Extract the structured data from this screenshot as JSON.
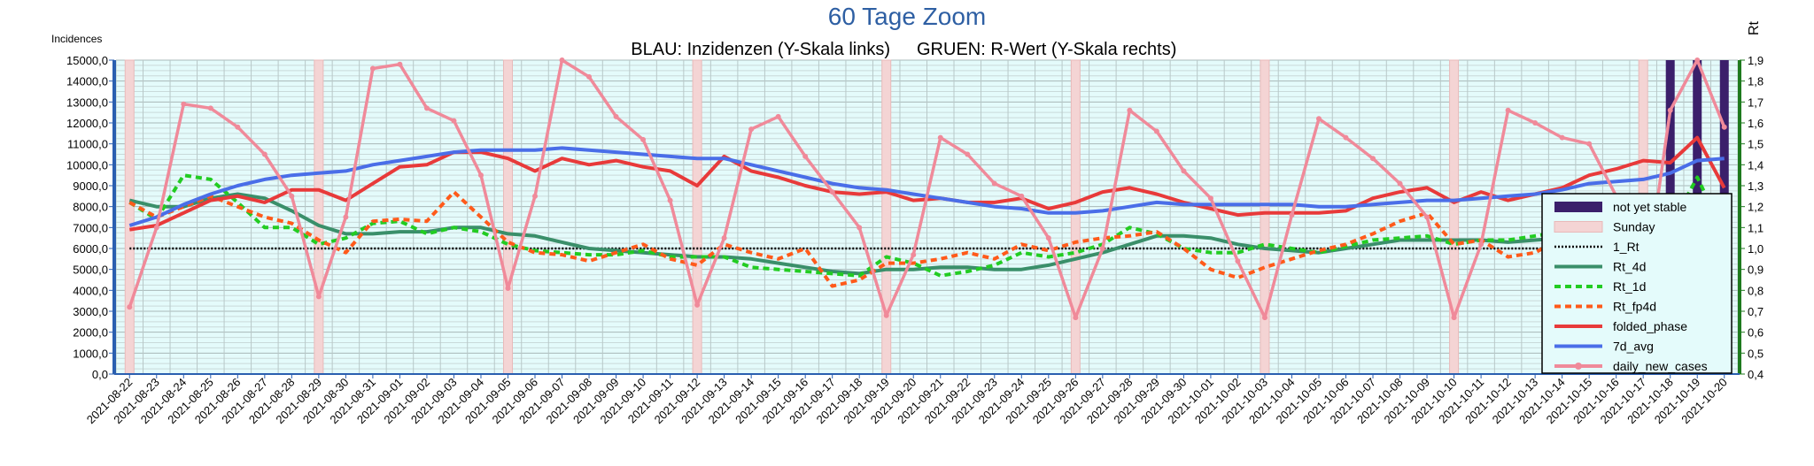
{
  "chart_data": {
    "type": "line",
    "title": "60 Tage Zoom",
    "subtitle_left": "BLAU: Inzidenzen (Y-Skala links)",
    "subtitle_right": "GRUEN: R-Wert (Y-Skala rechts)",
    "ylabel_left": "Incidences",
    "ylabel_right": "Rt",
    "ylim_left": [
      0,
      15000
    ],
    "ylim_right": [
      0.4,
      1.9
    ],
    "yticks_left": [
      "0,0",
      "1000,0",
      "2000,0",
      "3000,0",
      "4000,0",
      "5000,0",
      "6000,0",
      "7000,0",
      "8000,0",
      "9000,0",
      "10000,0",
      "11000,0",
      "12000,0",
      "13000,0",
      "14000,0",
      "15000,0"
    ],
    "yticks_right": [
      "0,4",
      "0,5",
      "0,6",
      "0,7",
      "0,8",
      "0,9",
      "1,0",
      "1,1",
      "1,2",
      "1,3",
      "1,4",
      "1,5",
      "1,6",
      "1,7",
      "1,8",
      "1,9"
    ],
    "categories": [
      "2021-08-22",
      "2021-08-23",
      "2021-08-24",
      "2021-08-25",
      "2021-08-26",
      "2021-08-27",
      "2021-08-28",
      "2021-08-29",
      "2021-08-30",
      "2021-08-31",
      "2021-09-01",
      "2021-09-02",
      "2021-09-03",
      "2021-09-04",
      "2021-09-05",
      "2021-09-06",
      "2021-09-07",
      "2021-09-08",
      "2021-09-09",
      "2021-09-10",
      "2021-09-11",
      "2021-09-12",
      "2021-09-13",
      "2021-09-14",
      "2021-09-15",
      "2021-09-16",
      "2021-09-17",
      "2021-09-18",
      "2021-09-19",
      "2021-09-20",
      "2021-09-21",
      "2021-09-22",
      "2021-09-23",
      "2021-09-24",
      "2021-09-25",
      "2021-09-26",
      "2021-09-27",
      "2021-09-28",
      "2021-09-29",
      "2021-09-30",
      "2021-10-01",
      "2021-10-02",
      "2021-10-03",
      "2021-10-04",
      "2021-10-05",
      "2021-10-06",
      "2021-10-07",
      "2021-10-08",
      "2021-10-09",
      "2021-10-10",
      "2021-10-11",
      "2021-10-12",
      "2021-10-13",
      "2021-10-14",
      "2021-10-15",
      "2021-10-16",
      "2021-10-17",
      "2021-10-18",
      "2021-10-19",
      "2021-10-20"
    ],
    "sunday_dates": [
      "2021-08-22",
      "2021-08-29",
      "2021-09-05",
      "2021-09-12",
      "2021-09-19",
      "2021-09-26",
      "2021-10-03",
      "2021-10-10",
      "2021-10-17"
    ],
    "not_yet_stable_dates": [
      "2021-10-18",
      "2021-10-19",
      "2021-10-20"
    ],
    "legend_position": "right",
    "grid": true,
    "series": [
      {
        "name": "not yet stable",
        "axis": "left",
        "style": "bar",
        "color": "#3b1f6b"
      },
      {
        "name": "Sunday",
        "axis": "left",
        "style": "bar",
        "color": "#f4d4d4"
      },
      {
        "name": "1_Rt",
        "axis": "right",
        "style": "dotted",
        "color": "#000000",
        "values": [
          1.0,
          1.0,
          1.0,
          1.0,
          1.0,
          1.0,
          1.0,
          1.0,
          1.0,
          1.0,
          1.0,
          1.0,
          1.0,
          1.0,
          1.0,
          1.0,
          1.0,
          1.0,
          1.0,
          1.0,
          1.0,
          1.0,
          1.0,
          1.0,
          1.0,
          1.0,
          1.0,
          1.0,
          1.0,
          1.0,
          1.0,
          1.0,
          1.0,
          1.0,
          1.0,
          1.0,
          1.0,
          1.0,
          1.0,
          1.0,
          1.0,
          1.0,
          1.0,
          1.0,
          1.0,
          1.0,
          1.0,
          1.0,
          1.0,
          1.0,
          1.0,
          1.0,
          1.0,
          1.0,
          1.0,
          1.0,
          1.0,
          1.0,
          1.0,
          1.0
        ]
      },
      {
        "name": "Rt_4d",
        "axis": "right",
        "style": "solid",
        "color": "#3a8f6a",
        "values": [
          1.23,
          1.2,
          1.2,
          1.24,
          1.26,
          1.24,
          1.18,
          1.11,
          1.07,
          1.07,
          1.08,
          1.08,
          1.1,
          1.1,
          1.07,
          1.06,
          1.03,
          1.0,
          0.99,
          0.98,
          0.97,
          0.96,
          0.96,
          0.95,
          0.93,
          0.91,
          0.89,
          0.88,
          0.9,
          0.9,
          0.91,
          0.91,
          0.9,
          0.9,
          0.92,
          0.95,
          0.98,
          1.02,
          1.06,
          1.06,
          1.05,
          1.02,
          1.0,
          0.99,
          0.98,
          1.0,
          1.02,
          1.04,
          1.04,
          1.04,
          1.04,
          1.03,
          1.04,
          1.05,
          1.06,
          1.07,
          1.08,
          1.12,
          1.14,
          1.1
        ]
      },
      {
        "name": "Rt_1d",
        "axis": "right",
        "style": "dashed",
        "color": "#22cc22",
        "values": [
          1.22,
          1.14,
          1.35,
          1.33,
          1.22,
          1.1,
          1.1,
          1.02,
          1.05,
          1.12,
          1.13,
          1.07,
          1.1,
          1.08,
          1.02,
          0.99,
          0.98,
          0.97,
          0.97,
          0.99,
          0.96,
          0.96,
          0.96,
          0.91,
          0.9,
          0.89,
          0.88,
          0.87,
          0.96,
          0.93,
          0.87,
          0.89,
          0.92,
          0.98,
          0.96,
          0.98,
          1.02,
          1.1,
          1.07,
          1.0,
          0.98,
          0.98,
          1.02,
          1.0,
          0.98,
          1.01,
          1.04,
          1.05,
          1.06,
          1.02,
          1.04,
          1.04,
          1.06,
          1.08,
          1.12,
          1.06,
          1.05,
          1.1,
          1.34,
          1.07
        ]
      },
      {
        "name": "Rt_fp4d",
        "axis": "right",
        "style": "dashed",
        "color": "#ff5a1a",
        "values": [
          1.22,
          1.15,
          1.2,
          1.25,
          1.2,
          1.15,
          1.12,
          1.04,
          0.98,
          1.13,
          1.14,
          1.13,
          1.27,
          1.15,
          1.03,
          0.98,
          0.97,
          0.94,
          0.98,
          1.02,
          0.95,
          0.92,
          1.02,
          0.98,
          0.95,
          1.0,
          0.82,
          0.85,
          0.93,
          0.93,
          0.95,
          0.98,
          0.95,
          1.02,
          0.99,
          1.03,
          1.05,
          1.06,
          1.08,
          1.0,
          0.9,
          0.86,
          0.91,
          0.95,
          0.99,
          1.02,
          1.07,
          1.13,
          1.17,
          1.02,
          1.04,
          0.96,
          0.98,
          1.05,
          1.08,
          1.12,
          1.19,
          1.16,
          1.12,
          0.92
        ]
      },
      {
        "name": "folded_phase",
        "axis": "left",
        "style": "solid",
        "color": "#e83a3a",
        "values": [
          6900,
          7100,
          7700,
          8300,
          8500,
          8200,
          8800,
          8800,
          8300,
          9100,
          9900,
          10000,
          10600,
          10600,
          10300,
          9700,
          10300,
          10000,
          10200,
          9900,
          9700,
          9000,
          10400,
          9700,
          9400,
          9000,
          8700,
          8600,
          8700,
          8300,
          8400,
          8200,
          8200,
          8400,
          7900,
          8200,
          8700,
          8900,
          8600,
          8200,
          7900,
          7600,
          7700,
          7700,
          7700,
          7800,
          8400,
          8700,
          8900,
          8200,
          8700,
          8300,
          8600,
          8900,
          9500,
          9800,
          10200,
          10100,
          11300,
          8900
        ]
      },
      {
        "name": "7d_avg",
        "axis": "left",
        "style": "solid",
        "color": "#4a6ee8",
        "values": [
          7100,
          7500,
          8100,
          8600,
          9000,
          9300,
          9500,
          9600,
          9700,
          10000,
          10200,
          10400,
          10600,
          10700,
          10700,
          10700,
          10800,
          10700,
          10600,
          10500,
          10400,
          10300,
          10300,
          10000,
          9700,
          9400,
          9100,
          8900,
          8800,
          8600,
          8400,
          8200,
          8000,
          7900,
          7700,
          7700,
          7800,
          8000,
          8200,
          8100,
          8100,
          8100,
          8100,
          8100,
          8000,
          8000,
          8100,
          8200,
          8300,
          8300,
          8400,
          8500,
          8600,
          8800,
          9100,
          9200,
          9300,
          9600,
          10200,
          10300
        ]
      },
      {
        "name": "daily_new_cases",
        "axis": "left",
        "style": "marker",
        "color": "#f08a9a",
        "values": [
          3200,
          7000,
          12900,
          12700,
          11800,
          10500,
          8500,
          3700,
          7500,
          14600,
          14800,
          12700,
          12100,
          9500,
          4100,
          8500,
          15000,
          14200,
          12300,
          11200,
          8300,
          3300,
          6500,
          11700,
          12300,
          10400,
          8700,
          7000,
          2800,
          5700,
          11300,
          10500,
          9100,
          8500,
          6500,
          2700,
          6000,
          12600,
          11600,
          9700,
          8400,
          5400,
          2700,
          7600,
          12200,
          11300,
          10300,
          9100,
          7500,
          2700,
          6200,
          12600,
          12000,
          11300,
          11000,
          8500,
          3600,
          12600,
          15000,
          11800
        ]
      }
    ]
  }
}
